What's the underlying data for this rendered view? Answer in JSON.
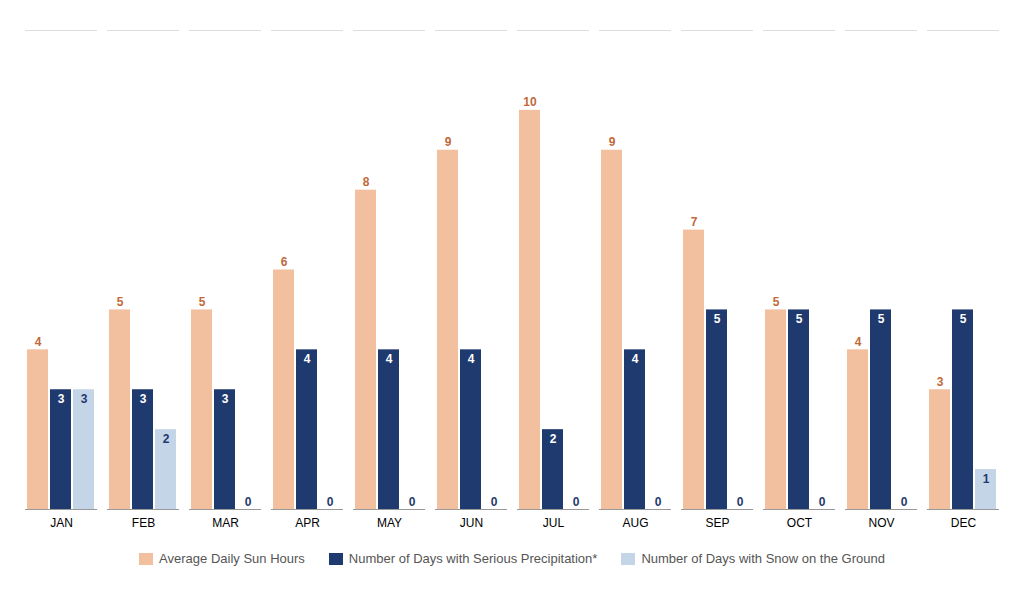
{
  "chart_data": {
    "type": "bar",
    "categories": [
      "JAN",
      "FEB",
      "MAR",
      "APR",
      "MAY",
      "JUN",
      "JUL",
      "AUG",
      "SEP",
      "OCT",
      "NOV",
      "DEC"
    ],
    "series": [
      {
        "name": "Average Daily Sun Hours",
        "color": "#F2C09E",
        "values": [
          4,
          5,
          5,
          6,
          8,
          9,
          10,
          9,
          7,
          5,
          4,
          3
        ]
      },
      {
        "name": "Number of Days with Serious Precipitation*",
        "color": "#1F3A6E",
        "values": [
          3,
          3,
          3,
          4,
          4,
          4,
          2,
          4,
          5,
          5,
          5,
          5
        ]
      },
      {
        "name": "Number of Days with Snow on the Ground",
        "color": "#C5D5E8",
        "values": [
          3,
          2,
          0,
          0,
          0,
          0,
          0,
          0,
          0,
          0,
          0,
          1
        ]
      }
    ],
    "ylim": [
      0,
      12
    ],
    "data_labels": true,
    "tick_labels": "x",
    "legend": "bottom",
    "grid": false
  }
}
